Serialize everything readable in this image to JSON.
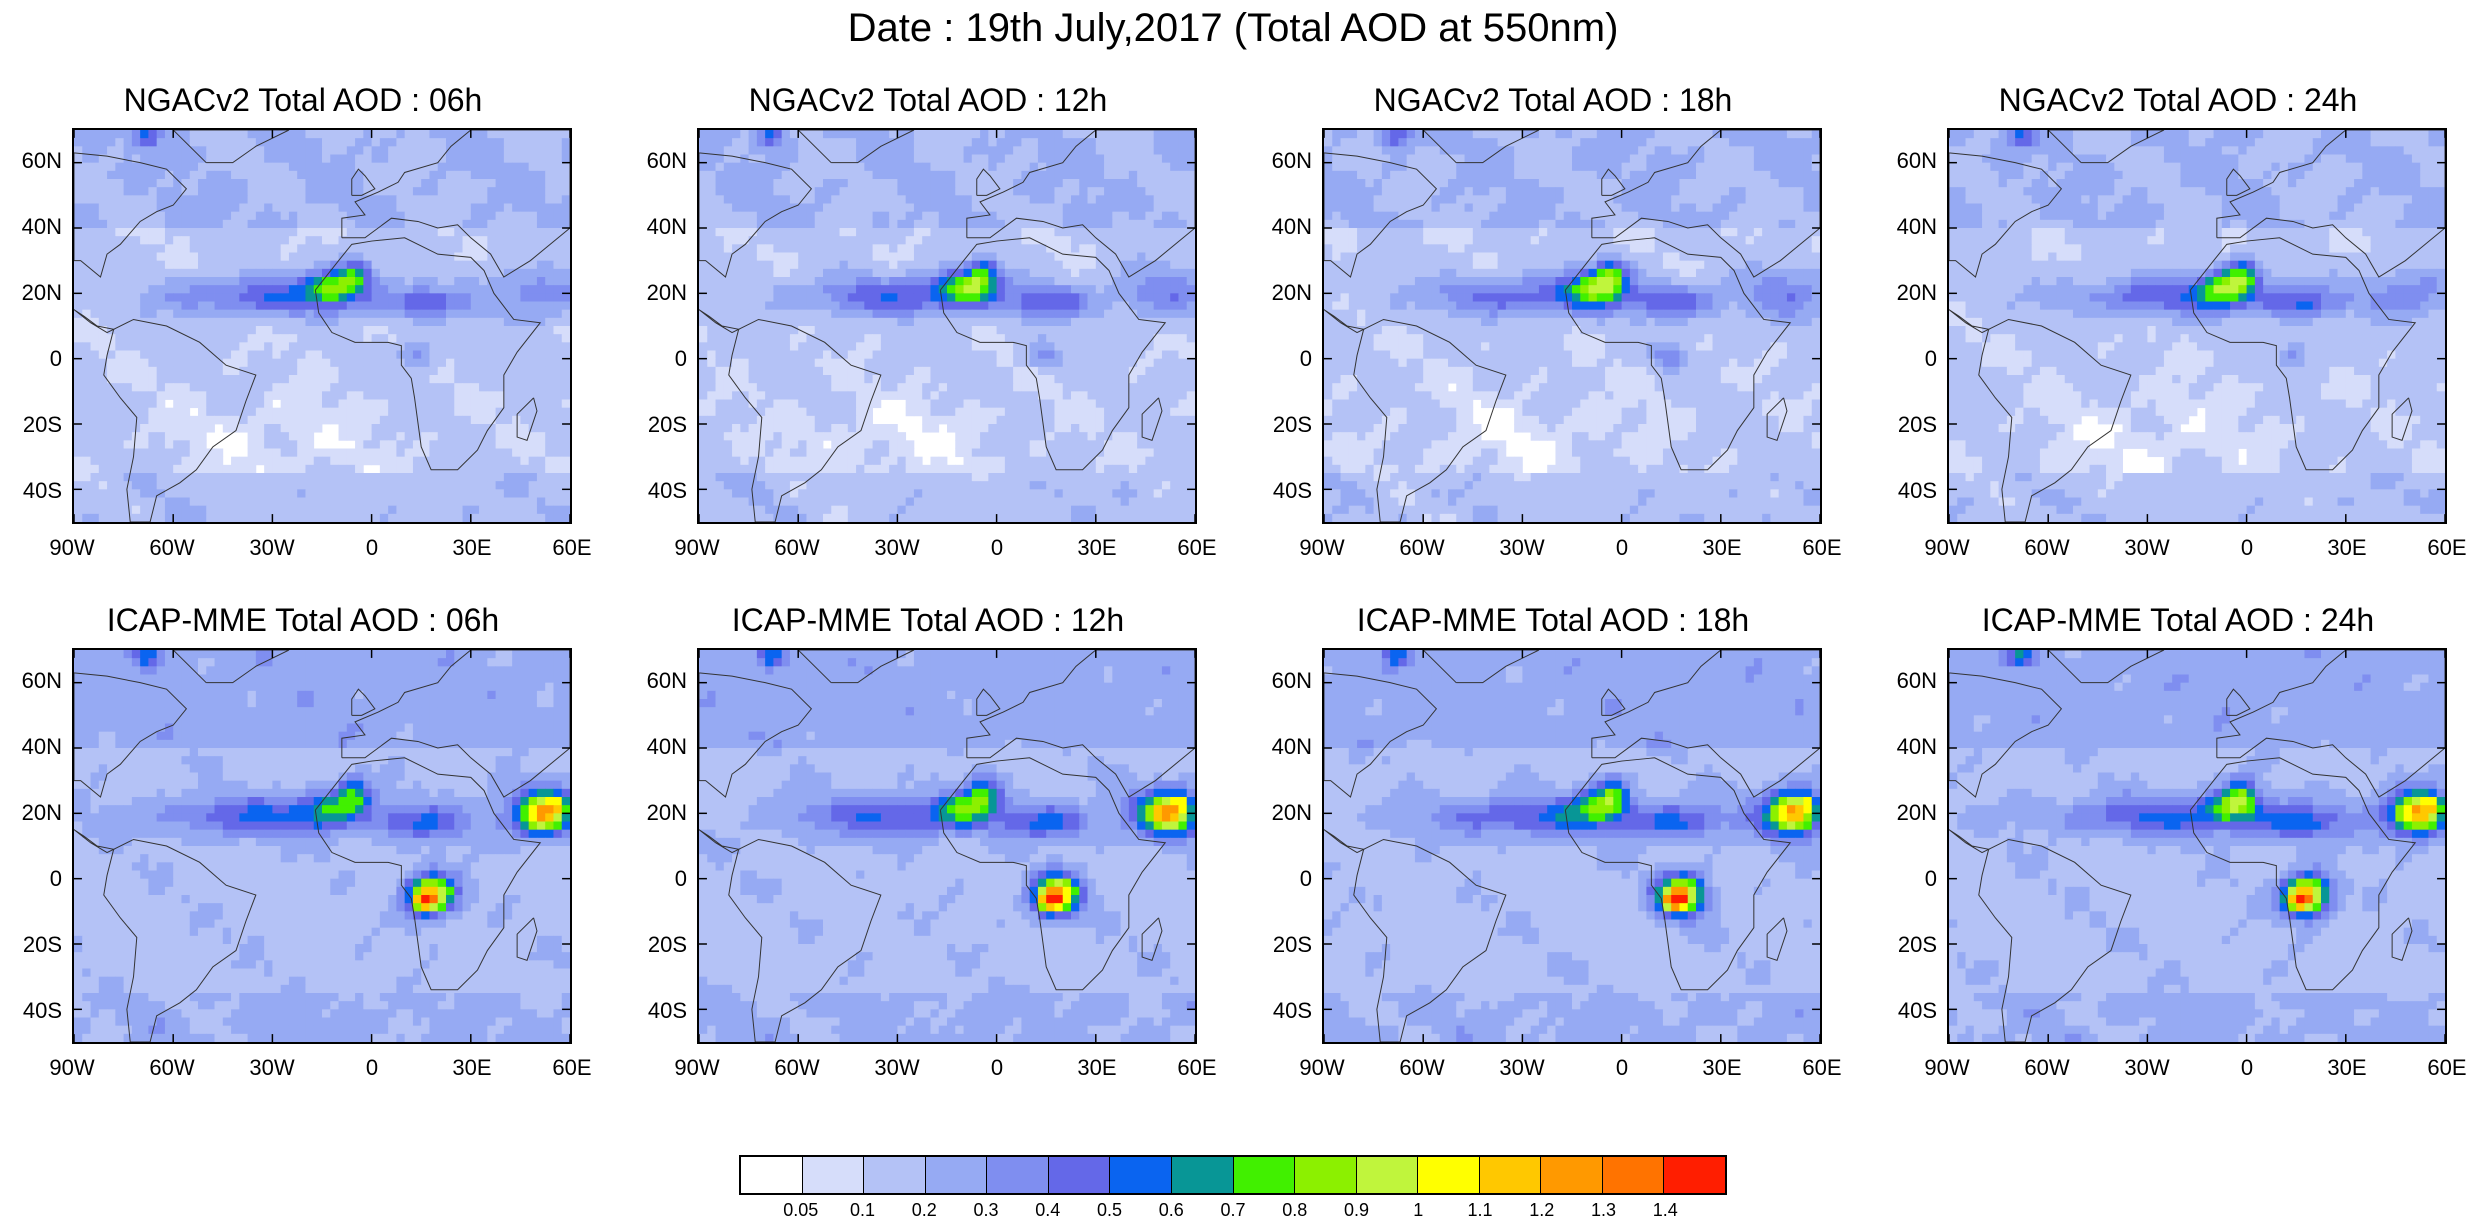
{
  "title": "Date : 19th July,2017 (Total AOD at 550nm)",
  "lat_labels": [
    "60N",
    "40N",
    "20N",
    "0",
    "20S",
    "40S"
  ],
  "lon_labels": [
    "90W",
    "60W",
    "30W",
    "0",
    "30E",
    "60E"
  ],
  "panels": [
    {
      "title": "NGACv2 Total AOD : 06h",
      "model": "NGACv2",
      "hour": "06h"
    },
    {
      "title": "NGACv2 Total AOD : 12h",
      "model": "NGACv2",
      "hour": "12h"
    },
    {
      "title": "NGACv2 Total AOD : 18h",
      "model": "NGACv2",
      "hour": "18h"
    },
    {
      "title": "NGACv2 Total AOD : 24h",
      "model": "NGACv2",
      "hour": "24h"
    },
    {
      "title": "ICAP-MME Total AOD : 06h",
      "model": "ICAP-MME",
      "hour": "06h"
    },
    {
      "title": "ICAP-MME Total AOD : 12h",
      "model": "ICAP-MME",
      "hour": "12h"
    },
    {
      "title": "ICAP-MME Total AOD : 18h",
      "model": "ICAP-MME",
      "hour": "18h"
    },
    {
      "title": "ICAP-MME Total AOD : 24h",
      "model": "ICAP-MME",
      "hour": "24h"
    }
  ],
  "colorbar": {
    "labels": [
      "0.05",
      "0.1",
      "0.2",
      "0.3",
      "0.4",
      "0.5",
      "0.6",
      "0.7",
      "0.8",
      "0.9",
      "1",
      "1.1",
      "1.2",
      "1.3",
      "1.4"
    ],
    "colors": [
      "#ffffff",
      "#d6ddfa",
      "#b4c2f6",
      "#96aaf3",
      "#7f8ef0",
      "#6468e8",
      "#0a64f0",
      "#089696",
      "#41f000",
      "#8cf000",
      "#c0f53c",
      "#ffff00",
      "#ffc800",
      "#ff9900",
      "#ff7300",
      "#ff1e00"
    ]
  }
}
